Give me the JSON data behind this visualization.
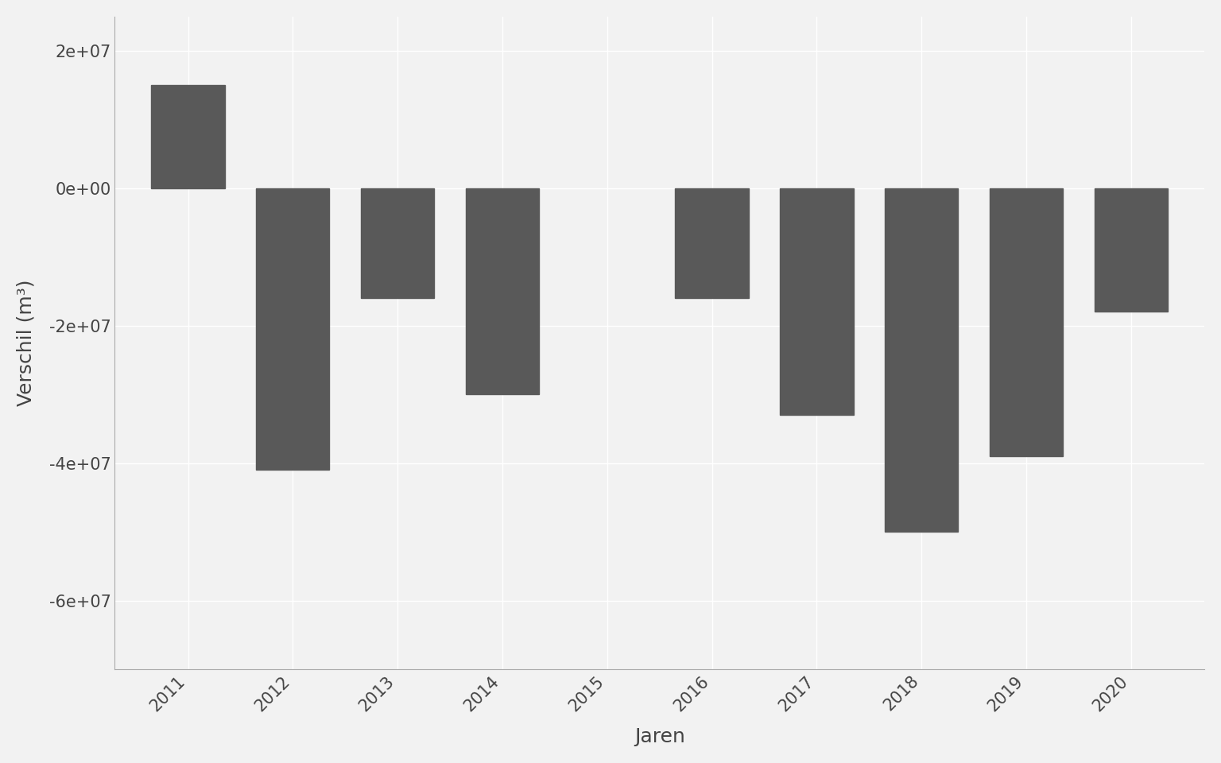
{
  "years": [
    2011,
    2012,
    2013,
    2014,
    2015,
    2016,
    2017,
    2018,
    2019,
    2020
  ],
  "values": [
    15000000,
    -41000000,
    -16000000,
    -30000000,
    0,
    -16000000,
    -33000000,
    -50000000,
    -39000000,
    -18000000
  ],
  "bar_color": "#595959",
  "xlabel": "Jaren",
  "ylabel": "Verschil (m³)",
  "ylim": [
    -70000000,
    25000000
  ],
  "yticks": [
    -60000000,
    -40000000,
    -20000000,
    0,
    20000000
  ],
  "background_color": "#f2f2f2",
  "grid_color": "#ffffff",
  "axis_color": "#444444",
  "tick_label_color": "#444444",
  "bar_width": 0.7
}
